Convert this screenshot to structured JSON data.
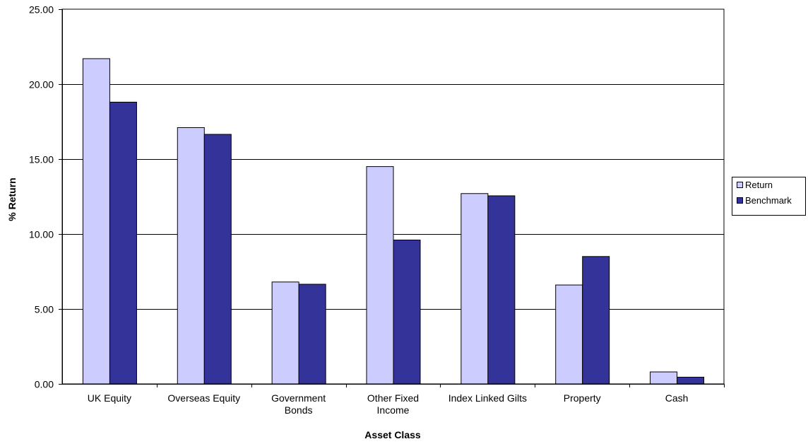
{
  "chart_data": {
    "type": "bar",
    "title": "",
    "xlabel": "Asset Class",
    "ylabel": "% Return",
    "ylim": [
      0,
      25
    ],
    "yticks": [
      "0.00",
      "5.00",
      "10.00",
      "15.00",
      "20.00",
      "25.00"
    ],
    "grid": true,
    "legend_position": "right",
    "categories": [
      [
        "UK Equity"
      ],
      [
        "Overseas Equity"
      ],
      [
        "Government",
        "Bonds"
      ],
      [
        "Other Fixed",
        "Income"
      ],
      [
        "Index Linked Gilts"
      ],
      [
        "Property"
      ],
      [
        "Cash"
      ]
    ],
    "series": [
      {
        "name": "Return",
        "color": "#ccccff",
        "values": [
          21.7,
          17.1,
          6.8,
          14.5,
          12.7,
          6.6,
          0.8
        ]
      },
      {
        "name": "Benchmark",
        "color": "#333399",
        "values": [
          18.8,
          16.65,
          6.65,
          9.6,
          12.55,
          8.5,
          0.45
        ]
      }
    ]
  }
}
